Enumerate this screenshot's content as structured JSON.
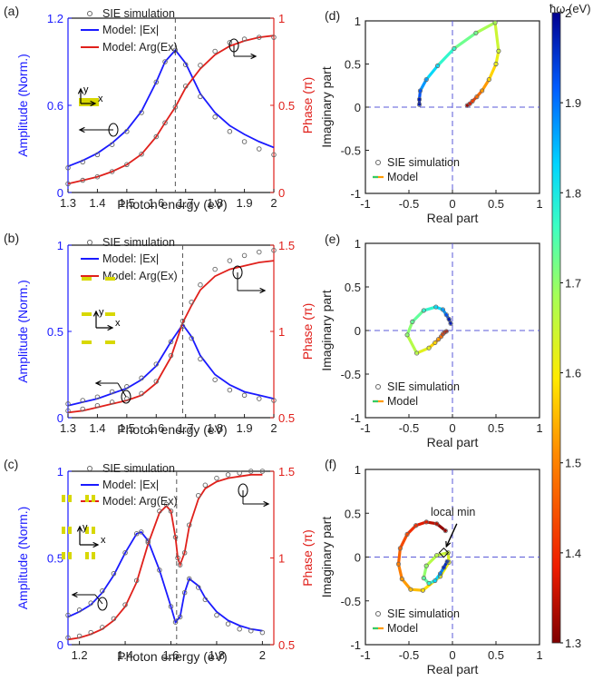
{
  "colors": {
    "blue": "#1a1aff",
    "red": "#e0201b",
    "black": "#222222",
    "marker": "#666666",
    "dash": "#5a5ad8"
  },
  "colorbar": {
    "label": "ħω (eV)",
    "range": [
      1.3,
      2.0
    ],
    "ticks": [
      1.3,
      1.4,
      1.5,
      1.6,
      1.7,
      1.8,
      1.9,
      2
    ]
  },
  "chart_data": [
    {
      "type": "line",
      "panel_label": "(a)",
      "xlabel": "Photon energy (eV)",
      "ylabel": "Amplitude (Norm.)",
      "y2label": "Phase (π)",
      "xlim": [
        1.3,
        2.0
      ],
      "xticks": [
        1.3,
        1.4,
        1.5,
        1.6,
        1.7,
        1.8,
        1.9,
        2
      ],
      "ylim": [
        0,
        1.2
      ],
      "yticks": [
        0,
        0.6,
        1.2
      ],
      "y2lim": [
        0,
        1
      ],
      "y2ticks": [
        0,
        0.5,
        1
      ],
      "resonance_line": 1.665,
      "legend": [
        "SIE simulation",
        "Model: |Ex|",
        "Model: Arg(Ex)"
      ],
      "axes_inset": {
        "y": "y",
        "x": "x"
      },
      "series": [
        {
          "name": "Model: |Ex|",
          "axis": "left",
          "x": [
            1.3,
            1.35,
            1.4,
            1.45,
            1.5,
            1.55,
            1.6,
            1.63,
            1.665,
            1.7,
            1.75,
            1.8,
            1.85,
            1.9,
            1.95,
            2.0
          ],
          "values": [
            0.18,
            0.22,
            0.27,
            0.34,
            0.43,
            0.56,
            0.76,
            0.9,
            0.98,
            0.89,
            0.68,
            0.55,
            0.46,
            0.4,
            0.35,
            0.31
          ]
        },
        {
          "name": "Model: Arg(Ex)",
          "axis": "right",
          "x": [
            1.3,
            1.35,
            1.4,
            1.45,
            1.5,
            1.55,
            1.6,
            1.63,
            1.665,
            1.7,
            1.75,
            1.8,
            1.85,
            1.9,
            1.95,
            2.0
          ],
          "values": [
            0.05,
            0.07,
            0.09,
            0.12,
            0.16,
            0.22,
            0.32,
            0.4,
            0.49,
            0.6,
            0.71,
            0.79,
            0.84,
            0.87,
            0.89,
            0.9
          ]
        },
        {
          "name": "SIE simulation amplitude",
          "axis": "left",
          "x": [
            1.3,
            1.35,
            1.4,
            1.45,
            1.5,
            1.55,
            1.6,
            1.63,
            1.665,
            1.7,
            1.75,
            1.8,
            1.85,
            1.9,
            1.95,
            2.0
          ],
          "values": [
            0.17,
            0.21,
            0.26,
            0.33,
            0.42,
            0.55,
            0.76,
            0.9,
            0.98,
            0.88,
            0.66,
            0.52,
            0.42,
            0.35,
            0.3,
            0.26
          ]
        },
        {
          "name": "SIE simulation phase",
          "axis": "right",
          "x": [
            1.3,
            1.35,
            1.4,
            1.45,
            1.5,
            1.55,
            1.6,
            1.63,
            1.665,
            1.7,
            1.75,
            1.8,
            1.85,
            1.9,
            1.95,
            2.0
          ],
          "values": [
            0.05,
            0.07,
            0.09,
            0.12,
            0.16,
            0.22,
            0.32,
            0.4,
            0.49,
            0.61,
            0.73,
            0.81,
            0.86,
            0.88,
            0.89,
            0.89
          ]
        }
      ]
    },
    {
      "type": "line",
      "panel_label": "(b)",
      "xlabel": "Photon energy (eV)",
      "ylabel": "Amplitude (Norm.)",
      "y2label": "Phase (π)",
      "xlim": [
        1.3,
        2.0
      ],
      "xticks": [
        1.3,
        1.4,
        1.5,
        1.6,
        1.7,
        1.8,
        1.9,
        2
      ],
      "ylim": [
        0,
        1
      ],
      "yticks": [
        0,
        0.5,
        1
      ],
      "y2lim": [
        0.5,
        1.5
      ],
      "y2ticks": [
        0.5,
        1,
        1.5
      ],
      "resonance_line": 1.69,
      "legend": [
        "SIE simulation",
        "Model: |Ex|",
        "Model: Arg(Ex)"
      ],
      "axes_inset": {
        "y": "y",
        "x": "x"
      },
      "series": [
        {
          "name": "Model: |Ex|",
          "axis": "left",
          "x": [
            1.3,
            1.35,
            1.4,
            1.45,
            1.5,
            1.55,
            1.6,
            1.65,
            1.69,
            1.72,
            1.75,
            1.8,
            1.85,
            1.9,
            1.95,
            2.0
          ],
          "values": [
            0.07,
            0.09,
            0.11,
            0.14,
            0.17,
            0.22,
            0.3,
            0.44,
            0.54,
            0.47,
            0.36,
            0.25,
            0.19,
            0.15,
            0.13,
            0.11
          ]
        },
        {
          "name": "Model: Arg(Ex)",
          "axis": "right",
          "x": [
            1.3,
            1.35,
            1.4,
            1.45,
            1.5,
            1.55,
            1.6,
            1.65,
            1.69,
            1.72,
            1.75,
            1.8,
            1.85,
            1.9,
            1.95,
            2.0
          ],
          "values": [
            0.53,
            0.54,
            0.56,
            0.58,
            0.6,
            0.63,
            0.7,
            0.85,
            1.05,
            1.15,
            1.24,
            1.32,
            1.36,
            1.38,
            1.4,
            1.41
          ]
        },
        {
          "name": "SIE simulation amplitude",
          "axis": "left",
          "x": [
            1.3,
            1.35,
            1.4,
            1.45,
            1.5,
            1.55,
            1.6,
            1.65,
            1.69,
            1.72,
            1.75,
            1.8,
            1.85,
            1.9,
            1.95,
            2.0
          ],
          "values": [
            0.08,
            0.1,
            0.12,
            0.15,
            0.18,
            0.23,
            0.31,
            0.44,
            0.53,
            0.46,
            0.34,
            0.22,
            0.16,
            0.13,
            0.11,
            0.1
          ]
        },
        {
          "name": "SIE simulation phase",
          "axis": "right",
          "x": [
            1.3,
            1.35,
            1.4,
            1.45,
            1.5,
            1.55,
            1.6,
            1.65,
            1.69,
            1.72,
            1.75,
            1.8,
            1.85,
            1.9,
            1.95,
            2.0
          ],
          "values": [
            0.54,
            0.55,
            0.57,
            0.59,
            0.61,
            0.64,
            0.71,
            0.86,
            1.06,
            1.17,
            1.27,
            1.36,
            1.41,
            1.44,
            1.46,
            1.47
          ]
        }
      ]
    },
    {
      "type": "line",
      "panel_label": "(c)",
      "xlabel": "Photon energy (eV)",
      "ylabel": "Amplitude (Norm.)",
      "y2label": "Phase (π)",
      "xlim": [
        1.15,
        2.05
      ],
      "xticks": [
        1.2,
        1.4,
        1.6,
        1.8,
        2
      ],
      "ylim": [
        0,
        1
      ],
      "yticks": [
        0,
        0.5,
        1
      ],
      "y2lim": [
        0.5,
        1.5
      ],
      "y2ticks": [
        0.5,
        1,
        1.5
      ],
      "resonance_line": 1.625,
      "legend": [
        "SIE simulation",
        "Model: |Ex|",
        "Model: Arg(Ex)"
      ],
      "axes_inset": {
        "y": "y",
        "x": "x"
      },
      "series": [
        {
          "name": "Model: |Ex|",
          "axis": "left",
          "x": [
            1.15,
            1.2,
            1.25,
            1.3,
            1.35,
            1.4,
            1.45,
            1.47,
            1.5,
            1.55,
            1.6,
            1.62,
            1.64,
            1.66,
            1.68,
            1.72,
            1.75,
            1.8,
            1.85,
            1.9,
            1.95,
            2.0
          ],
          "values": [
            0.16,
            0.19,
            0.23,
            0.3,
            0.4,
            0.53,
            0.64,
            0.65,
            0.6,
            0.43,
            0.22,
            0.13,
            0.16,
            0.3,
            0.38,
            0.34,
            0.27,
            0.19,
            0.14,
            0.11,
            0.09,
            0.08
          ]
        },
        {
          "name": "Model: Arg(Ex)",
          "axis": "right",
          "x": [
            1.15,
            1.2,
            1.25,
            1.3,
            1.35,
            1.4,
            1.45,
            1.5,
            1.55,
            1.58,
            1.6,
            1.62,
            1.63,
            1.64,
            1.66,
            1.68,
            1.72,
            1.75,
            1.8,
            1.85,
            1.9,
            1.95,
            2.0
          ],
          "values": [
            0.53,
            0.54,
            0.56,
            0.59,
            0.64,
            0.72,
            0.86,
            1.08,
            1.26,
            1.3,
            1.27,
            1.12,
            1.0,
            0.96,
            1.03,
            1.18,
            1.34,
            1.4,
            1.44,
            1.46,
            1.47,
            1.48,
            1.48
          ]
        },
        {
          "name": "SIE simulation amplitude",
          "axis": "left",
          "x": [
            1.15,
            1.2,
            1.25,
            1.3,
            1.35,
            1.4,
            1.45,
            1.47,
            1.5,
            1.55,
            1.6,
            1.62,
            1.64,
            1.66,
            1.68,
            1.72,
            1.75,
            1.8,
            1.85,
            1.9,
            1.95,
            2.0
          ],
          "values": [
            0.17,
            0.2,
            0.24,
            0.31,
            0.41,
            0.53,
            0.64,
            0.65,
            0.6,
            0.43,
            0.22,
            0.13,
            0.16,
            0.3,
            0.38,
            0.33,
            0.26,
            0.17,
            0.12,
            0.09,
            0.08,
            0.07
          ]
        },
        {
          "name": "SIE simulation phase",
          "axis": "right",
          "x": [
            1.15,
            1.2,
            1.25,
            1.3,
            1.35,
            1.4,
            1.45,
            1.5,
            1.55,
            1.58,
            1.6,
            1.62,
            1.63,
            1.64,
            1.66,
            1.68,
            1.72,
            1.75,
            1.8,
            1.85,
            1.9,
            1.95,
            2.0
          ],
          "values": [
            0.54,
            0.55,
            0.57,
            0.6,
            0.65,
            0.73,
            0.87,
            1.09,
            1.27,
            1.31,
            1.27,
            1.12,
            1.0,
            0.96,
            1.03,
            1.19,
            1.36,
            1.42,
            1.46,
            1.48,
            1.49,
            1.5,
            1.5
          ]
        }
      ]
    },
    {
      "type": "scatter",
      "panel_label": "(d)",
      "xlabel": "Real part",
      "ylabel": "Imaginary part",
      "xlim": [
        -1,
        1
      ],
      "ylim": [
        -1,
        1
      ],
      "xticks": [
        -1,
        -0.5,
        0,
        0.5,
        1
      ],
      "yticks": [
        -1,
        -0.5,
        0,
        0.5,
        1
      ],
      "legend": [
        "SIE simulation",
        "Model"
      ],
      "series": [
        {
          "name": "Model",
          "energy": [
            1.3,
            1.35,
            1.4,
            1.45,
            1.5,
            1.55,
            1.6,
            1.63,
            1.665,
            1.7,
            1.75,
            1.8,
            1.85,
            1.9,
            1.95,
            2.0
          ],
          "re": [
            0.17,
            0.2,
            0.23,
            0.28,
            0.34,
            0.42,
            0.5,
            0.53,
            0.49,
            0.27,
            0.02,
            -0.17,
            -0.3,
            -0.37,
            -0.38,
            -0.38
          ],
          "im": [
            0.02,
            0.04,
            0.07,
            0.12,
            0.19,
            0.32,
            0.5,
            0.65,
            0.98,
            0.86,
            0.68,
            0.48,
            0.32,
            0.19,
            0.09,
            0.03
          ]
        }
      ]
    },
    {
      "type": "scatter",
      "panel_label": "(e)",
      "xlabel": "Real part",
      "ylabel": "Imaginary part",
      "xlim": [
        -1,
        1
      ],
      "ylim": [
        -1,
        1
      ],
      "xticks": [
        -1,
        -0.5,
        0,
        0.5,
        1
      ],
      "yticks": [
        -1,
        -0.5,
        0,
        0.5,
        1
      ],
      "legend": [
        "SIE simulation",
        "Model"
      ],
      "series": [
        {
          "name": "Model",
          "energy": [
            1.3,
            1.35,
            1.4,
            1.45,
            1.5,
            1.55,
            1.6,
            1.65,
            1.69,
            1.72,
            1.75,
            1.8,
            1.85,
            1.9,
            1.95,
            2.0
          ],
          "re": [
            -0.07,
            -0.09,
            -0.11,
            -0.13,
            -0.16,
            -0.2,
            -0.27,
            -0.41,
            -0.52,
            -0.46,
            -0.33,
            -0.19,
            -0.11,
            -0.07,
            -0.04,
            -0.02
          ],
          "im": [
            -0.01,
            -0.02,
            -0.04,
            -0.07,
            -0.1,
            -0.14,
            -0.2,
            -0.26,
            -0.05,
            0.1,
            0.23,
            0.27,
            0.24,
            0.18,
            0.13,
            0.08
          ]
        }
      ]
    },
    {
      "type": "scatter",
      "panel_label": "(f)",
      "xlabel": "Real part",
      "ylabel": "Imaginary part",
      "xlim": [
        -1,
        1
      ],
      "ylim": [
        -1,
        1
      ],
      "xticks": [
        -1,
        -0.5,
        0,
        0.5,
        1
      ],
      "yticks": [
        -1,
        -0.5,
        0,
        0.5,
        1
      ],
      "legend": [
        "SIE simulation",
        "Model"
      ],
      "annotation": "local min",
      "series": [
        {
          "name": "Model",
          "energy": [
            1.3,
            1.33,
            1.36,
            1.39,
            1.42,
            1.45,
            1.48,
            1.51,
            1.54,
            1.57,
            1.6,
            1.62,
            1.64,
            1.66,
            1.68,
            1.72,
            1.76,
            1.8,
            1.86,
            1.92,
            2.0
          ],
          "re": [
            -0.08,
            -0.18,
            -0.3,
            -0.42,
            -0.52,
            -0.6,
            -0.62,
            -0.58,
            -0.48,
            -0.34,
            -0.14,
            -0.04,
            -0.05,
            -0.18,
            -0.3,
            -0.33,
            -0.27,
            -0.2,
            -0.14,
            -0.1,
            -0.06
          ],
          "im": [
            0.3,
            0.38,
            0.4,
            0.36,
            0.26,
            0.1,
            -0.08,
            -0.25,
            -0.37,
            -0.38,
            -0.22,
            -0.06,
            0.05,
            0.02,
            -0.1,
            -0.24,
            -0.3,
            -0.27,
            -0.19,
            -0.12,
            -0.05
          ]
        }
      ]
    }
  ]
}
